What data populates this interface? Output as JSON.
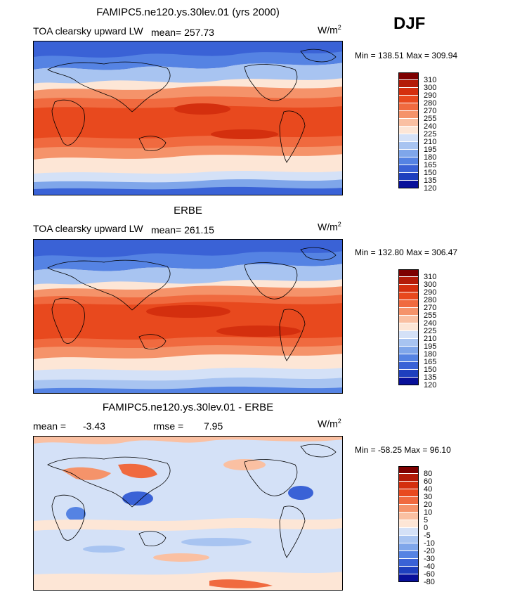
{
  "season": "DJF",
  "units_prefix": "W/m",
  "units_power": "2",
  "chart_data": [
    {
      "type": "heatmap",
      "title": "FAMIPC5.ne120.ys.30lev.01 (yrs 2000)",
      "subtitle": "TOA clearsky upward LW",
      "mean_text": "mean= 257.73",
      "minmax_text": "Min = 138.51 Max = 309.94",
      "mean": 257.73,
      "min": 138.51,
      "max": 309.94,
      "colorbar": {
        "levels": [
          "310",
          "300",
          "290",
          "280",
          "270",
          "255",
          "240",
          "225",
          "210",
          "195",
          "180",
          "165",
          "150",
          "135",
          "120"
        ],
        "colors": [
          "#7d0000",
          "#b31b08",
          "#d42f0e",
          "#e8491e",
          "#f06a3f",
          "#f5936a",
          "#fac0a2",
          "#fde6d6",
          "#d4e1f7",
          "#a8c4f1",
          "#7fa6ea",
          "#5583e3",
          "#3a62d6",
          "#1e3fbe",
          "#08109a"
        ]
      }
    },
    {
      "type": "heatmap",
      "title": "ERBE",
      "subtitle": "TOA clearsky upward LW",
      "mean_text": "mean= 261.15",
      "minmax_text": "Min = 132.80 Max = 306.47",
      "mean": 261.15,
      "min": 132.8,
      "max": 306.47,
      "colorbar": {
        "levels": [
          "310",
          "300",
          "290",
          "280",
          "270",
          "255",
          "240",
          "225",
          "210",
          "195",
          "180",
          "165",
          "150",
          "135",
          "120"
        ],
        "colors": [
          "#7d0000",
          "#b31b08",
          "#d42f0e",
          "#e8491e",
          "#f06a3f",
          "#f5936a",
          "#fac0a2",
          "#fde6d6",
          "#d4e1f7",
          "#a8c4f1",
          "#7fa6ea",
          "#5583e3",
          "#3a62d6",
          "#1e3fbe",
          "#08109a"
        ]
      }
    },
    {
      "type": "heatmap",
      "title": "FAMIPC5.ne120.ys.30lev.01 - ERBE",
      "mean_label": "mean =",
      "mean_value": "-3.43",
      "rmse_label": "rmse =",
      "rmse_value": "7.95",
      "mean": -3.43,
      "rmse": 7.95,
      "minmax_text": "Min = -58.25 Max =  96.10",
      "min": -58.25,
      "max": 96.1,
      "colorbar": {
        "levels": [
          "80",
          "60",
          "40",
          "30",
          "20",
          "10",
          "5",
          "0",
          "-5",
          "-10",
          "-20",
          "-30",
          "-40",
          "-60",
          "-80"
        ],
        "colors": [
          "#7d0000",
          "#b31b08",
          "#d42f0e",
          "#e8491e",
          "#f06a3f",
          "#f5936a",
          "#fac0a2",
          "#fde6d6",
          "#d4e1f7",
          "#a8c4f1",
          "#7fa6ea",
          "#5583e3",
          "#3a62d6",
          "#1e3fbe",
          "#08109a"
        ]
      }
    }
  ]
}
